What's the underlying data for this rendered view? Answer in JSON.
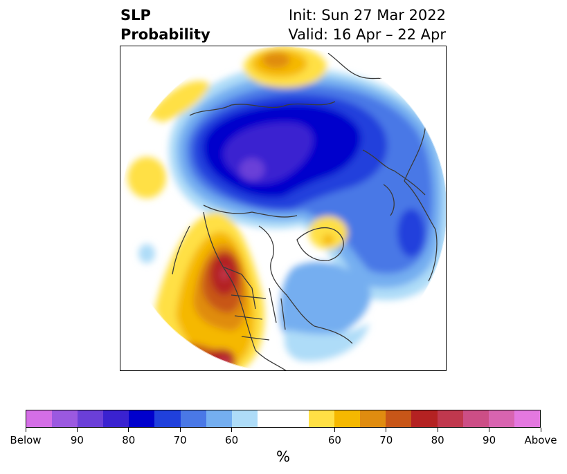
{
  "title": {
    "left_line1": "SLP",
    "left_line2": "Probability",
    "right_line1": "Init: Sun 27 Mar 2022",
    "right_line2": "Valid: 16 Apr – 22 Apr"
  },
  "map": {
    "projection": "north-polar-stereographic",
    "field": "SLP probability",
    "features": [
      {
        "kind": "below",
        "level": "75-80",
        "region": "Siberia / Arctic Russia"
      },
      {
        "kind": "below",
        "level": "85-90",
        "region": "central Siberia core"
      },
      {
        "kind": "below",
        "level": "60-70",
        "region": "Europe / North Atlantic"
      },
      {
        "kind": "below",
        "level": "70-75",
        "region": "eastern Canada / Quebec"
      },
      {
        "kind": "above",
        "level": "80-85",
        "region": "western North America / Gulf of Alaska"
      },
      {
        "kind": "above",
        "level": "55-65",
        "region": "Greenland"
      },
      {
        "kind": "above",
        "level": "65-70",
        "region": "northern Africa / Mediterranean"
      }
    ]
  },
  "colorbar": {
    "colors": [
      "#d46ee6",
      "#9b59e0",
      "#6b3fd8",
      "#3a22d0",
      "#0000cc",
      "#2040dc",
      "#4a78e6",
      "#74aef0",
      "#aedcf8",
      "#ffffff",
      "#ffffff",
      "#ffe045",
      "#f5b800",
      "#e08c10",
      "#c85618",
      "#b42222",
      "#c0384e",
      "#cc4e86",
      "#d864b0",
      "#e478e0"
    ],
    "labels": [
      {
        "text": "Below",
        "index": 0
      },
      {
        "text": "90",
        "index": 2
      },
      {
        "text": "80",
        "index": 4
      },
      {
        "text": "70",
        "index": 6
      },
      {
        "text": "60",
        "index": 8
      },
      {
        "text": "60",
        "index": 12
      },
      {
        "text": "70",
        "index": 14
      },
      {
        "text": "80",
        "index": 16
      },
      {
        "text": "90",
        "index": 18
      },
      {
        "text": "Above",
        "index": 20
      }
    ],
    "unit": "%"
  }
}
